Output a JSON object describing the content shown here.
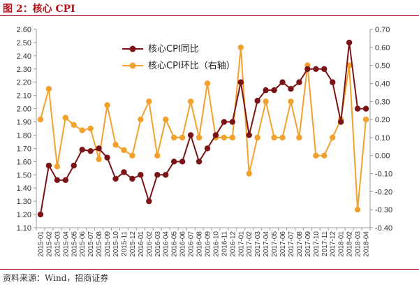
{
  "figure": {
    "title": "图 2：核心 CPI",
    "source": "资料来源：Wind，招商证券"
  },
  "colors": {
    "series1": "#7b1417",
    "series2": "#f2a12c",
    "title": "#b5141b",
    "axis": "#9a9a9a"
  },
  "chart_data": {
    "type": "line",
    "dual_axis": true,
    "grid": false,
    "legend_position": "top-left-inside",
    "x": [
      "2015-01",
      "2015-02",
      "2015-03",
      "2015-04",
      "2015-05",
      "2015-06",
      "2015-07",
      "2015-08",
      "2015-09",
      "2015-10",
      "2015-11",
      "2015-12",
      "2016-01",
      "2016-02",
      "2016-03",
      "2016-04",
      "2016-05",
      "2016-06",
      "2016-07",
      "2016-08",
      "2016-09",
      "2016-10",
      "2016-11",
      "2016-12",
      "2017-01",
      "2017-02",
      "2017-03",
      "2017-04",
      "2017-05",
      "2017-06",
      "2017-07",
      "2017-08",
      "2017-09",
      "2017-10",
      "2017-11",
      "2017-12",
      "2018-01",
      "2018-02",
      "2018-03",
      "2018-04"
    ],
    "y_left": {
      "min": 1.1,
      "max": 2.6,
      "step": 0.1,
      "decimals": 2
    },
    "y_right": {
      "min": -0.4,
      "max": 0.7,
      "step": 0.1,
      "decimals": 2
    },
    "series": [
      {
        "name": "核心CPI同比",
        "axis": "left",
        "values": [
          1.2,
          1.57,
          1.46,
          1.46,
          1.57,
          1.69,
          1.68,
          1.7,
          1.63,
          1.47,
          1.52,
          1.47,
          1.5,
          1.3,
          1.5,
          1.5,
          1.6,
          1.6,
          1.8,
          1.6,
          1.7,
          1.8,
          1.9,
          1.9,
          2.2,
          1.8,
          2.06,
          2.14,
          2.14,
          2.2,
          2.15,
          2.2,
          2.3,
          2.3,
          2.3,
          2.2,
          1.9,
          2.5,
          2.0,
          2.0
        ]
      },
      {
        "name": "核心CPI环比（右轴）",
        "axis": "right",
        "values": [
          0.2,
          0.37,
          -0.06,
          0.21,
          0.17,
          0.14,
          0.15,
          -0.02,
          0.28,
          0.06,
          0.03,
          0.0,
          0.2,
          0.3,
          0.0,
          0.2,
          0.1,
          0.1,
          0.3,
          0.1,
          0.4,
          0.1,
          0.1,
          0.1,
          0.6,
          -0.1,
          0.1,
          0.3,
          0.1,
          0.1,
          0.3,
          0.1,
          0.5,
          0.0,
          0.0,
          0.1,
          0.2,
          0.5,
          -0.3,
          0.2
        ]
      }
    ]
  }
}
